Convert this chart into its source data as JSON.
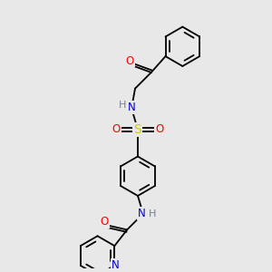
{
  "bg_color": "#e8e8e8",
  "atom_colors": {
    "C": "#000000",
    "N": "#0000cd",
    "O": "#ff0000",
    "S": "#cccc00",
    "H": "#708090"
  },
  "bond_color": "#000000",
  "figsize": [
    3.0,
    3.0
  ],
  "dpi": 100,
  "lw": 1.3,
  "ring_r": 22,
  "font_size": 8.5
}
